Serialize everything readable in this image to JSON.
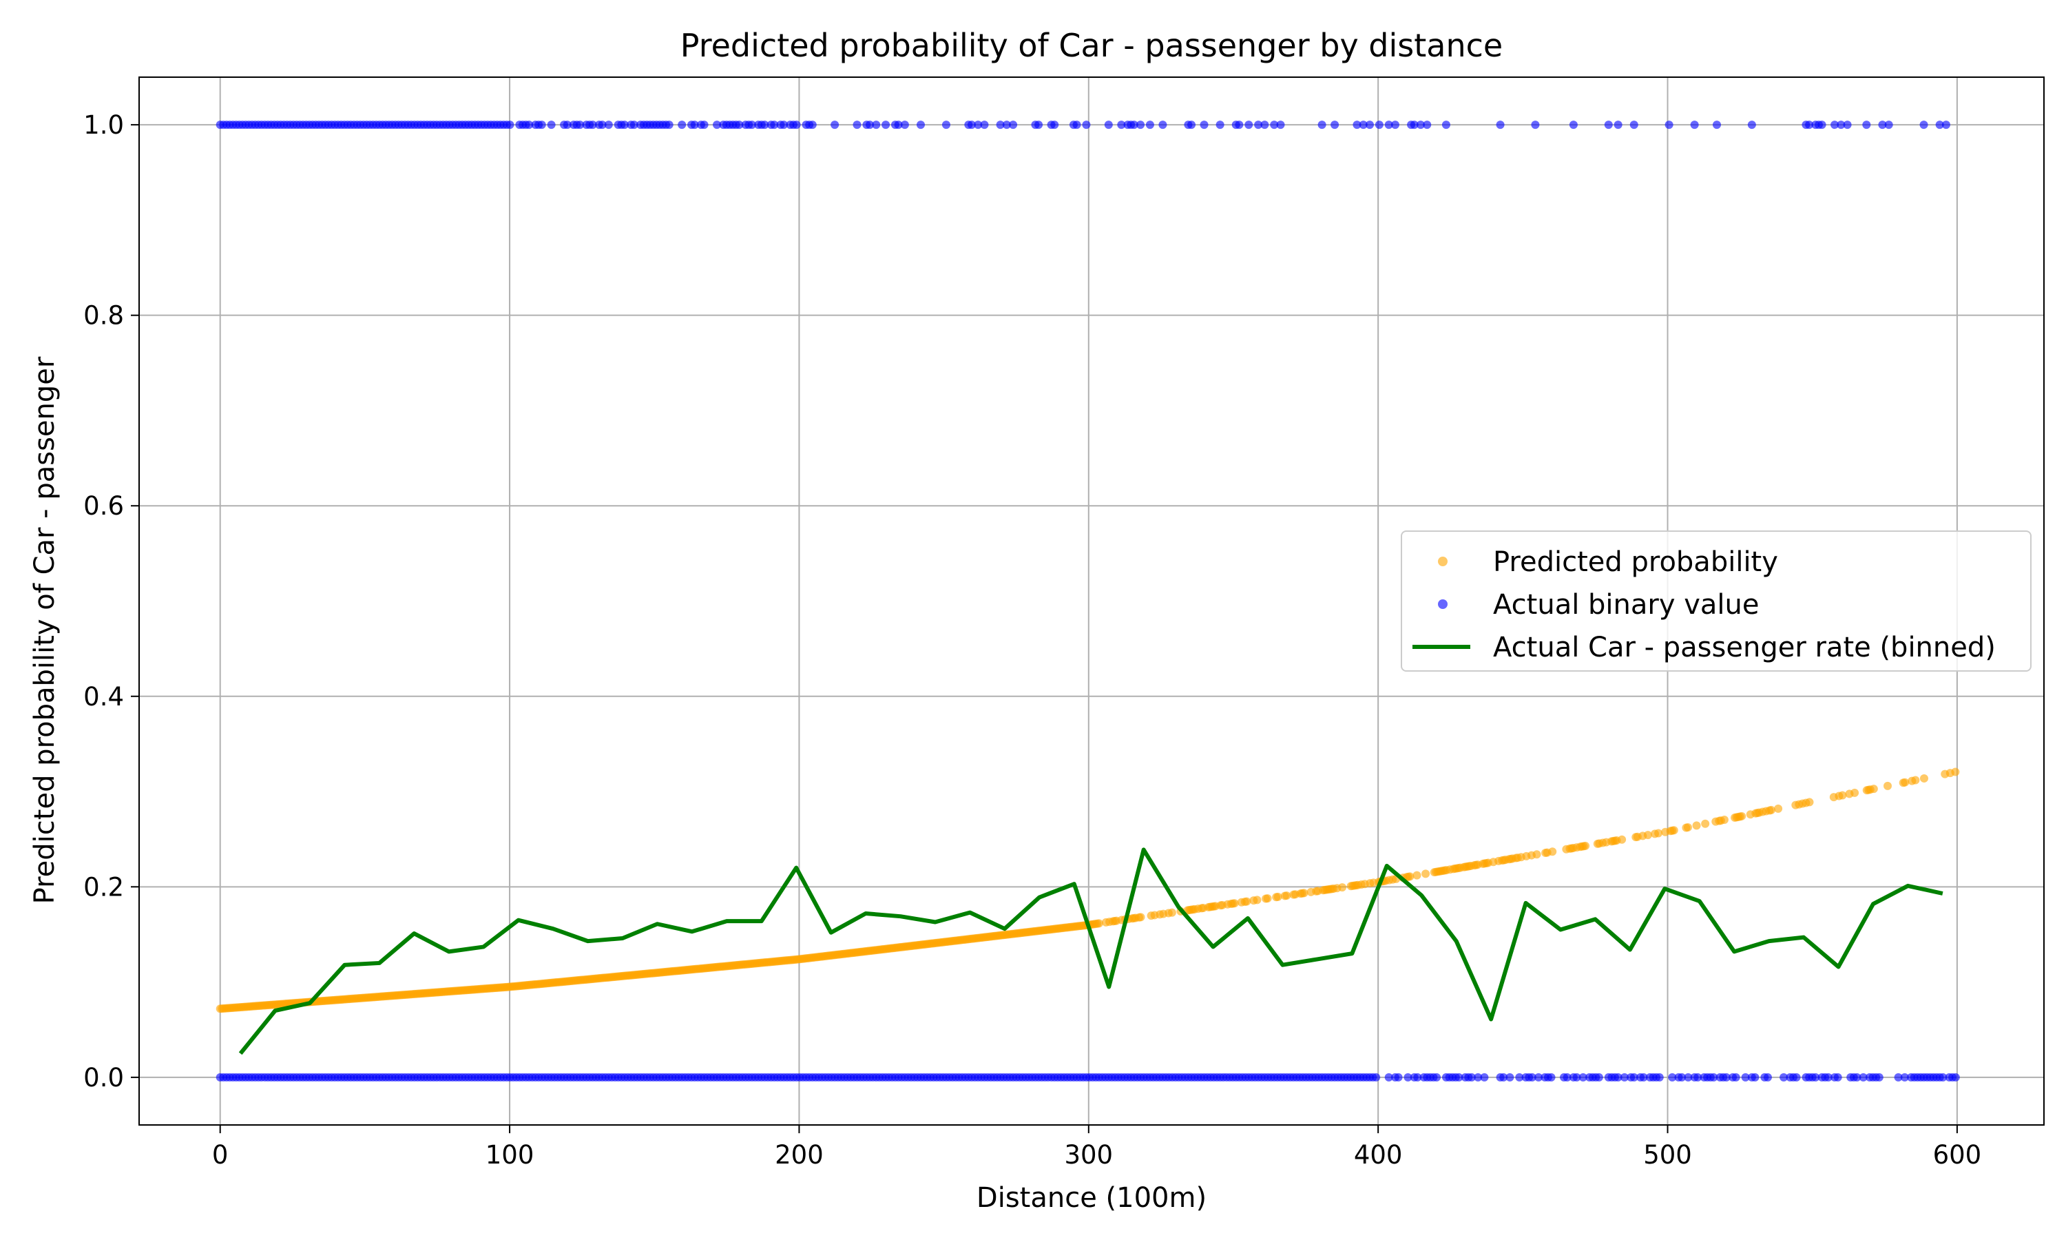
{
  "chart_data": {
    "type": "scatter",
    "title": "Predicted probability of Car - passenger by distance",
    "xlabel": "Distance (100m)",
    "ylabel": "Predicted probability of Car - passenger",
    "xlim": [
      -28,
      630
    ],
    "ylim": [
      -0.05,
      1.05
    ],
    "xticks": [
      "0",
      "100",
      "200",
      "300",
      "400",
      "500",
      "600"
    ],
    "yticks": [
      "0.0",
      "0.2",
      "0.4",
      "0.6",
      "0.8",
      "1.0"
    ],
    "grid": true,
    "legend_position": "center-right",
    "legend": [
      "Predicted probability",
      "Actual binary value",
      "Actual Car - passenger rate (binned)"
    ],
    "series": [
      {
        "name": "Predicted probability",
        "kind": "scatter",
        "color": "#FFA500",
        "curve": {
          "x": [
            0,
            100,
            200,
            300,
            400,
            500,
            600
          ],
          "y": [
            0.072,
            0.095,
            0.124,
            0.16,
            0.205,
            0.258,
            0.321
          ]
        }
      },
      {
        "name": "Actual binary value",
        "kind": "scatter",
        "color": "#0000FF",
        "y_values": [
          0,
          1
        ],
        "x_range": [
          0,
          600
        ]
      },
      {
        "name": "Actual Car - passenger rate (binned)",
        "kind": "line",
        "color": "#008000",
        "x": [
          7,
          19,
          31,
          43,
          55,
          67,
          79,
          91,
          103,
          115,
          127,
          139,
          151,
          163,
          175,
          187,
          199,
          211,
          223,
          235,
          247,
          259,
          271,
          283,
          295,
          307,
          319,
          331,
          343,
          355,
          367,
          379,
          391,
          403,
          415,
          427,
          439,
          451,
          463,
          475,
          487,
          499,
          511,
          523,
          535,
          547,
          559,
          571,
          583,
          595
        ],
        "y": [
          0.025,
          0.07,
          0.078,
          0.118,
          0.12,
          0.151,
          0.132,
          0.137,
          0.165,
          0.156,
          0.143,
          0.146,
          0.161,
          0.153,
          0.164,
          0.164,
          0.22,
          0.152,
          0.172,
          0.169,
          0.163,
          0.173,
          0.156,
          0.189,
          0.203,
          0.095,
          0.239,
          0.179,
          0.137,
          0.167,
          0.118,
          0.124,
          0.13,
          0.222,
          0.191,
          0.143,
          0.061,
          0.183,
          0.155,
          0.166,
          0.134,
          0.198,
          0.185,
          0.132,
          0.143,
          0.147,
          0.116,
          0.182,
          0.201,
          0.193
        ]
      }
    ]
  }
}
